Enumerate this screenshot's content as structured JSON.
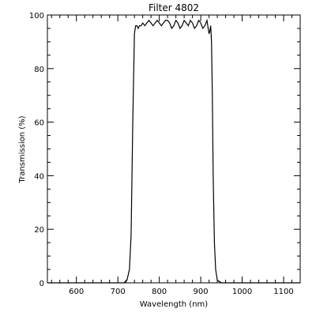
{
  "chart_data": {
    "type": "line",
    "title": "Filter 4802",
    "xlabel": "Wavelength (nm)",
    "ylabel": "Transmission (%)",
    "xlim": [
      530,
      1140
    ],
    "ylim": [
      0,
      100
    ],
    "x_ticks": [
      600,
      700,
      800,
      900,
      1000,
      1100
    ],
    "y_ticks": [
      0,
      20,
      40,
      60,
      80,
      100
    ],
    "grid": false,
    "series": [
      {
        "x": [
          530,
          700,
          715,
          722,
          728,
          732,
          736,
          740,
          743,
          746,
          749,
          752,
          756,
          760,
          765,
          770,
          775,
          780,
          785,
          790,
          795,
          800,
          805,
          810,
          815,
          820,
          825,
          830,
          835,
          840,
          845,
          850,
          855,
          860,
          865,
          870,
          875,
          880,
          885,
          890,
          895,
          900,
          905,
          910,
          915,
          918,
          920,
          922,
          924,
          926,
          928,
          930,
          933,
          936,
          940,
          945,
          950,
          960,
          1140
        ],
        "y": [
          0,
          0,
          0,
          1,
          5,
          18,
          60,
          93,
          96,
          96,
          95,
          96,
          96,
          97,
          96,
          97,
          98,
          97,
          96,
          97,
          98,
          97,
          96,
          97,
          98,
          98,
          97,
          95,
          96,
          98,
          97,
          95,
          96,
          98,
          97,
          96,
          98,
          97,
          95,
          96,
          98,
          97,
          95,
          96,
          98,
          95,
          93,
          94,
          96,
          90,
          70,
          40,
          15,
          5,
          1,
          0.5,
          0,
          0,
          0
        ]
      }
    ]
  }
}
